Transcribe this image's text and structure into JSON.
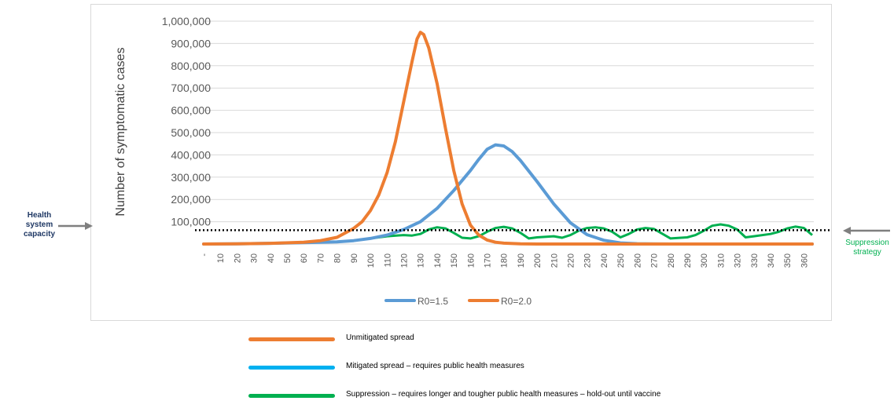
{
  "chart_data": {
    "type": "line",
    "ylabel": "Number of symptomatic cases",
    "xlabel": "",
    "ylim": [
      0,
      1000000
    ],
    "yticks": [
      "-",
      "100,000",
      "200,000",
      "300,000",
      "400,000",
      "500,000",
      "600,000",
      "700,000",
      "800,000",
      "900,000",
      "1,000,000"
    ],
    "xlim": [
      0,
      365
    ],
    "xticks": [
      "-",
      "10",
      "20",
      "30",
      "40",
      "50",
      "60",
      "70",
      "80",
      "90",
      "100",
      "110",
      "120",
      "130",
      "140",
      "150",
      "160",
      "170",
      "180",
      "190",
      "200",
      "210",
      "220",
      "230",
      "240",
      "250",
      "260",
      "270",
      "280",
      "290",
      "300",
      "310",
      "320",
      "330",
      "340",
      "350",
      "360"
    ],
    "grid": "horizontal",
    "legend_position": "bottom",
    "series": [
      {
        "name": "R0=1.5",
        "color": "#5b9bd5",
        "x": [
          0,
          20,
          40,
          60,
          80,
          90,
          100,
          110,
          120,
          130,
          140,
          150,
          160,
          165,
          170,
          175,
          180,
          185,
          190,
          200,
          210,
          220,
          230,
          240,
          250,
          260,
          270,
          280,
          290,
          300,
          310,
          320,
          330,
          340,
          350,
          360,
          365
        ],
        "y": [
          0,
          1000,
          3000,
          6000,
          10000,
          15000,
          25000,
          40000,
          65000,
          100000,
          160000,
          240000,
          330000,
          380000,
          425000,
          445000,
          440000,
          415000,
          375000,
          280000,
          180000,
          95000,
          42000,
          17000,
          5000,
          1500,
          500,
          0,
          0,
          0,
          0,
          0,
          0,
          0,
          0,
          0,
          0
        ]
      },
      {
        "name": "R0=2.0",
        "color": "#ed7d31",
        "x": [
          0,
          20,
          40,
          60,
          70,
          80,
          90,
          95,
          100,
          105,
          110,
          115,
          120,
          125,
          128,
          130,
          132,
          135,
          140,
          145,
          150,
          155,
          160,
          165,
          170,
          175,
          180,
          190,
          200,
          220,
          250,
          300,
          365
        ],
        "y": [
          0,
          1000,
          3000,
          8000,
          15000,
          30000,
          70000,
          100000,
          150000,
          220000,
          320000,
          460000,
          640000,
          820000,
          920000,
          950000,
          940000,
          880000,
          720000,
          520000,
          330000,
          180000,
          85000,
          40000,
          18000,
          8000,
          4000,
          1000,
          0,
          0,
          0,
          0,
          0
        ]
      }
    ],
    "capacity_line": {
      "value": 62000,
      "color": "#000000"
    },
    "suppression_series": {
      "color": "#00b050",
      "x": [
        0,
        20,
        40,
        60,
        80,
        90,
        100,
        110,
        120,
        125,
        130,
        135,
        140,
        145,
        150,
        155,
        160,
        165,
        170,
        175,
        180,
        185,
        190,
        195,
        200,
        210,
        215,
        220,
        225,
        230,
        235,
        240,
        245,
        250,
        255,
        260,
        265,
        270,
        280,
        290,
        295,
        300,
        305,
        310,
        315,
        320,
        325,
        330,
        340,
        345,
        350,
        355,
        360,
        365
      ],
      "y": [
        0,
        1000,
        3000,
        6000,
        10000,
        15000,
        25000,
        35000,
        40000,
        38000,
        45000,
        65000,
        75000,
        70000,
        50000,
        28000,
        25000,
        35000,
        55000,
        72000,
        77000,
        70000,
        50000,
        25000,
        30000,
        35000,
        28000,
        40000,
        60000,
        72000,
        75000,
        70000,
        55000,
        30000,
        45000,
        65000,
        72000,
        68000,
        25000,
        30000,
        40000,
        60000,
        82000,
        88000,
        82000,
        65000,
        30000,
        35000,
        45000,
        55000,
        70000,
        78000,
        72000,
        40000
      ]
    },
    "legend": [
      "R0=1.5",
      "R0=2.0"
    ],
    "annotations": {
      "left": [
        "Health",
        "system",
        "capacity"
      ],
      "right": [
        "Suppression",
        "strategy"
      ]
    }
  },
  "key": [
    {
      "label": "Unmitigated spread",
      "color": "#ed7d31"
    },
    {
      "label": "Mitigated spread – requires public health measures",
      "color": "#00b0f0"
    },
    {
      "label": "Suppression – requires longer and tougher public health measures – hold-out until vaccine",
      "color": "#00b050"
    }
  ]
}
